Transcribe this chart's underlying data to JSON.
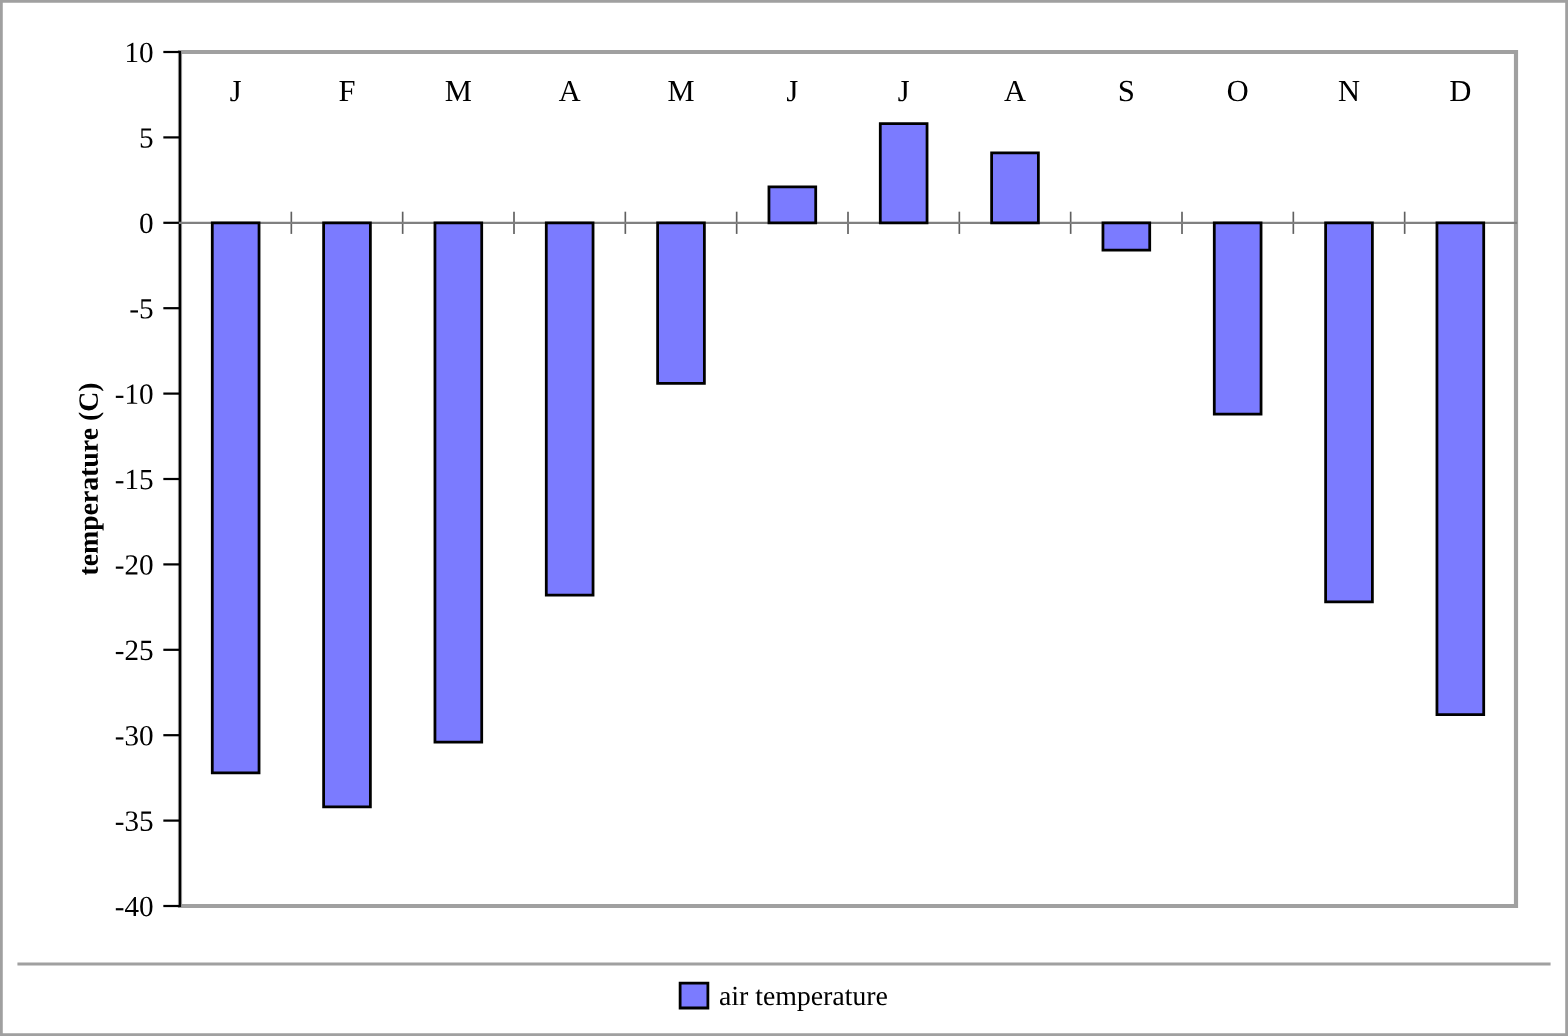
{
  "chart_data": {
    "type": "bar",
    "ylabel": "temperature (C)",
    "categories": [
      "J",
      "F",
      "M",
      "A",
      "M",
      "J",
      "J",
      "A",
      "S",
      "O",
      "N",
      "D"
    ],
    "series": [
      {
        "name": "air temperature",
        "color": "#7b7bff",
        "values": [
          -32.2,
          -34.2,
          -30.4,
          -21.8,
          -9.4,
          2.1,
          5.8,
          4.1,
          -1.6,
          -11.2,
          -22.2,
          -28.8
        ]
      }
    ],
    "ylim": [
      -40,
      10
    ],
    "yticks": [
      -40,
      -35,
      -30,
      -25,
      -20,
      -15,
      -10,
      -5,
      0,
      5,
      10
    ],
    "legend": "bottom"
  }
}
